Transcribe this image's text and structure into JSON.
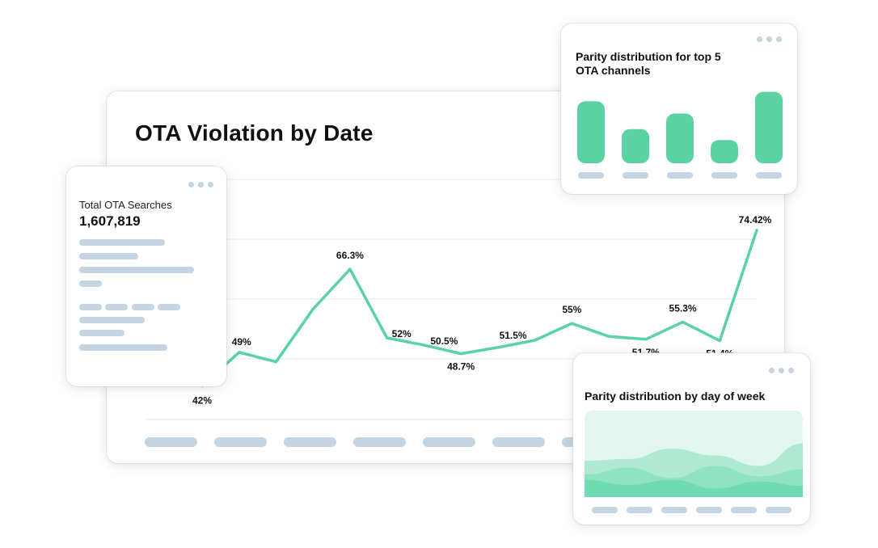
{
  "main": {
    "title": "OTA Violation by Date"
  },
  "summary": {
    "label": "Total OTA Searches",
    "value": "1,607,819"
  },
  "bars_card": {
    "title": "Parity distribution for top 5 OTA channels"
  },
  "area_card": {
    "title": "Parity distribution by day of week"
  },
  "colors": {
    "accent": "#5ad2a4",
    "placeholder": "#c5d4e2",
    "area_light": "#e0f6ee",
    "area_mid": "#b0e9d2",
    "area_dark": "#6fdbb1"
  },
  "chart_data": [
    {
      "type": "line",
      "title": "OTA Violation by Date",
      "ylim": [
        35,
        85
      ],
      "grid": true,
      "values": [
        42,
        49,
        47,
        58,
        66.3,
        52,
        50.5,
        48.7,
        50,
        51.5,
        55,
        52.3,
        51.7,
        55.3,
        51.4,
        74.42
      ],
      "labels": [
        "42%",
        "49%",
        "",
        "",
        "66.3%",
        "52%",
        "50.5%",
        "48.7%",
        "",
        "51.5%",
        "55%",
        "",
        "51.7%",
        "55.3%",
        "51.4%",
        "74.42%"
      ]
    },
    {
      "type": "bar",
      "title": "Parity distribution for top 5 OTA channels",
      "values": [
        80,
        44,
        64,
        30,
        92
      ],
      "ylim": [
        0,
        100
      ]
    },
    {
      "type": "area",
      "title": "Parity distribution by day of week",
      "ylim": [
        0,
        100
      ],
      "series": [
        {
          "values": [
            42,
            44,
            56,
            48,
            36,
            62
          ]
        },
        {
          "values": [
            26,
            34,
            22,
            36,
            24,
            32
          ]
        },
        {
          "values": [
            20,
            14,
            20,
            10,
            18,
            13
          ]
        }
      ]
    }
  ]
}
